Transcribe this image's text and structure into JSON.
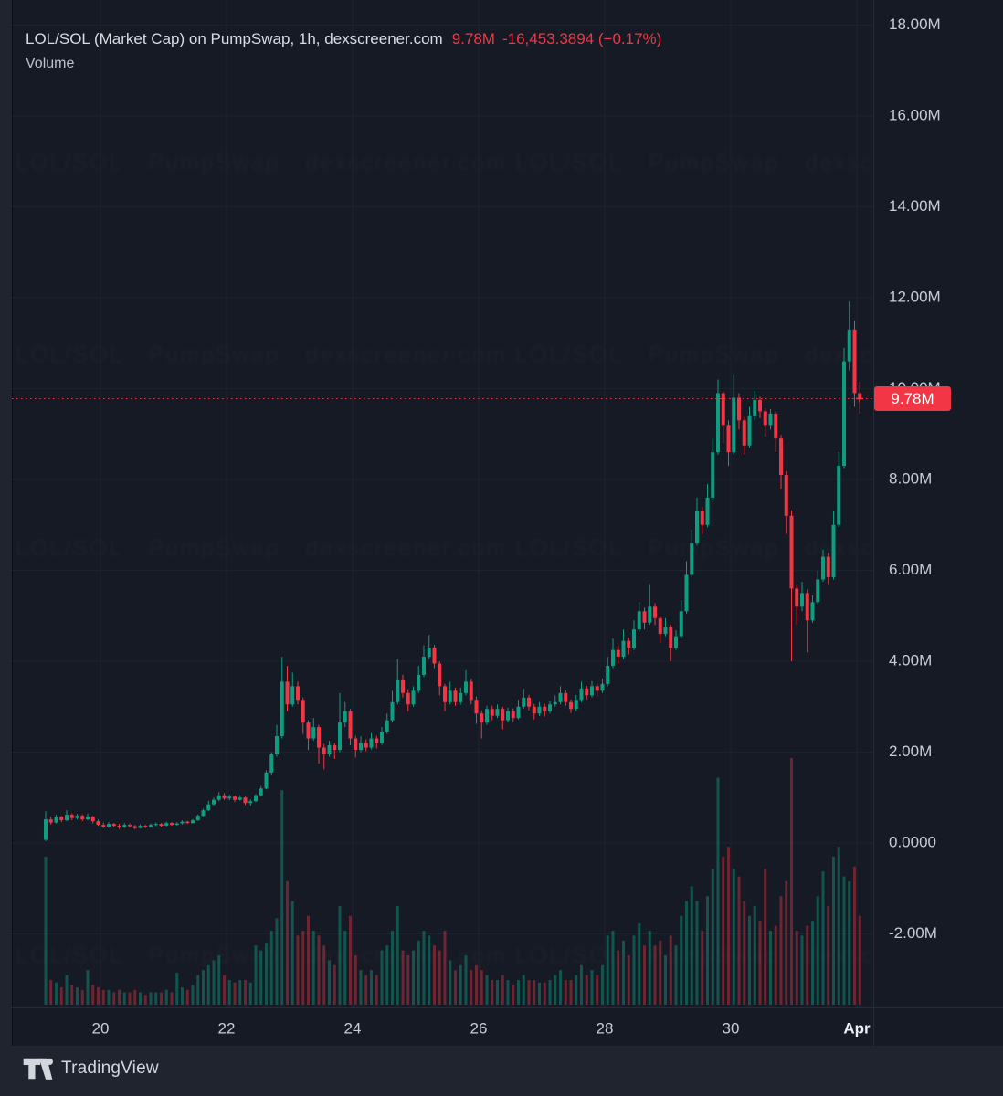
{
  "header": {
    "symbol_line": "LOL/SOL (Market Cap) on PumpSwap, 1h, dexscreener.com",
    "price": "9.78M",
    "change": "-16,453.3894 (−0.17%)",
    "indicator_label": "Volume"
  },
  "price_scale": {
    "current_price_label": "9.78M"
  },
  "branding": {
    "logo_text": "TradingView"
  },
  "watermark": {
    "text": "LOL/SOL · PumpSwap · dexscreener.com"
  },
  "colors": {
    "background": "#151a24",
    "page_background": "#20242f",
    "grid": "#1d2230",
    "border": "#262b38",
    "text": "#c8ccd5",
    "title_text": "#d9dce3",
    "up": "#0f9d82",
    "down": "#f23645",
    "vol_up": "rgba(15,157,130,0.45)",
    "vol_down": "rgba(242,54,69,0.40)",
    "accent": "#f23645",
    "badge_text": "#ffffff",
    "time_emphasis": "#eef1f6"
  },
  "chart_data": {
    "type": "candlestick",
    "title": "LOL/SOL (Market Cap) on PumpSwap, 1h, dexscreener.com",
    "subtitle_indicator": "Volume",
    "interval": "1h",
    "last_price_label": "9.78M",
    "last_price_value_m": 9.78,
    "change_label": "-16,453.3894 (−0.17%)",
    "note": "Values in millions (market cap). OHLC+relative volume estimated from pixels at ~2h resolution, Mar 19 → Apr 1.",
    "x_axis": {
      "tick_labels": [
        "20",
        "22",
        "24",
        "26",
        "28",
        "30",
        "Apr"
      ],
      "emphasis_label": "Apr",
      "grid": true
    },
    "y_axis": {
      "tick_labels": [
        "-2.00M",
        "0.0000",
        "2.00M",
        "4.00M",
        "6.00M",
        "8.00M",
        "10.00M",
        "12.00M",
        "14.00M",
        "16.00M",
        "18.00M"
      ],
      "tick_values_m": [
        -2,
        0,
        2,
        4,
        6,
        8,
        10,
        12,
        14,
        16,
        18
      ],
      "range_m": [
        -2.5,
        18.2
      ],
      "grid": true,
      "position": "right"
    },
    "legend_position": "top-left",
    "candles_format": [
      "open",
      "high",
      "low",
      "close",
      "relative_volume"
    ],
    "candles": [
      [
        0.07,
        0.7,
        0.04,
        0.52,
        0.6
      ],
      [
        0.52,
        0.58,
        0.4,
        0.45,
        0.1
      ],
      [
        0.45,
        0.62,
        0.43,
        0.58,
        0.09
      ],
      [
        0.58,
        0.6,
        0.46,
        0.5,
        0.07
      ],
      [
        0.5,
        0.72,
        0.48,
        0.62,
        0.12
      ],
      [
        0.62,
        0.65,
        0.5,
        0.55,
        0.08
      ],
      [
        0.55,
        0.64,
        0.52,
        0.6,
        0.07
      ],
      [
        0.6,
        0.63,
        0.48,
        0.52,
        0.06
      ],
      [
        0.52,
        0.65,
        0.5,
        0.58,
        0.14
      ],
      [
        0.58,
        0.6,
        0.43,
        0.48,
        0.08
      ],
      [
        0.48,
        0.52,
        0.38,
        0.4,
        0.07
      ],
      [
        0.4,
        0.45,
        0.33,
        0.36,
        0.06
      ],
      [
        0.36,
        0.46,
        0.34,
        0.42,
        0.06
      ],
      [
        0.42,
        0.44,
        0.35,
        0.38,
        0.05
      ],
      [
        0.38,
        0.42,
        0.31,
        0.35,
        0.06
      ],
      [
        0.35,
        0.44,
        0.33,
        0.4,
        0.05
      ],
      [
        0.4,
        0.43,
        0.34,
        0.37,
        0.05
      ],
      [
        0.37,
        0.4,
        0.3,
        0.33,
        0.06
      ],
      [
        0.33,
        0.41,
        0.32,
        0.38,
        0.05
      ],
      [
        0.38,
        0.4,
        0.33,
        0.35,
        0.04
      ],
      [
        0.35,
        0.43,
        0.34,
        0.4,
        0.05
      ],
      [
        0.4,
        0.45,
        0.37,
        0.42,
        0.05
      ],
      [
        0.42,
        0.44,
        0.36,
        0.38,
        0.05
      ],
      [
        0.38,
        0.47,
        0.37,
        0.44,
        0.06
      ],
      [
        0.44,
        0.46,
        0.38,
        0.4,
        0.05
      ],
      [
        0.4,
        0.46,
        0.38,
        0.43,
        0.13
      ],
      [
        0.43,
        0.5,
        0.41,
        0.47,
        0.07
      ],
      [
        0.47,
        0.49,
        0.42,
        0.44,
        0.06
      ],
      [
        0.44,
        0.53,
        0.43,
        0.5,
        0.08
      ],
      [
        0.5,
        0.63,
        0.49,
        0.6,
        0.12
      ],
      [
        0.6,
        0.76,
        0.58,
        0.72,
        0.14
      ],
      [
        0.72,
        0.93,
        0.7,
        0.85,
        0.16
      ],
      [
        0.85,
        1.0,
        0.83,
        0.95,
        0.18
      ],
      [
        0.95,
        1.12,
        0.92,
        1.05,
        0.2
      ],
      [
        1.05,
        1.1,
        0.95,
        0.98,
        0.12
      ],
      [
        0.98,
        1.06,
        0.94,
        1.02,
        0.1
      ],
      [
        1.02,
        1.04,
        0.9,
        0.95,
        0.09
      ],
      [
        0.95,
        1.05,
        0.93,
        1.0,
        0.1
      ],
      [
        1.0,
        1.02,
        0.84,
        0.88,
        0.1
      ],
      [
        0.88,
        0.96,
        0.82,
        0.92,
        0.09
      ],
      [
        0.92,
        1.08,
        0.9,
        1.05,
        0.24
      ],
      [
        1.05,
        1.25,
        1.02,
        1.2,
        0.22
      ],
      [
        1.2,
        1.6,
        1.18,
        1.55,
        0.25
      ],
      [
        1.55,
        2.0,
        1.5,
        1.95,
        0.3
      ],
      [
        1.95,
        2.6,
        1.9,
        2.35,
        0.35
      ],
      [
        2.35,
        4.1,
        2.3,
        3.55,
        0.87
      ],
      [
        3.55,
        3.9,
        2.9,
        3.05,
        0.5
      ],
      [
        3.05,
        3.75,
        3.0,
        3.45,
        0.42
      ],
      [
        3.45,
        3.55,
        3.05,
        3.15,
        0.28
      ],
      [
        3.15,
        3.2,
        2.4,
        2.65,
        0.3
      ],
      [
        2.65,
        2.7,
        2.05,
        2.3,
        0.36
      ],
      [
        2.3,
        2.75,
        2.25,
        2.55,
        0.3
      ],
      [
        2.55,
        2.6,
        1.75,
        2.1,
        0.28
      ],
      [
        2.1,
        2.18,
        1.62,
        1.95,
        0.24
      ],
      [
        1.95,
        2.25,
        1.9,
        2.15,
        0.18
      ],
      [
        2.15,
        2.2,
        1.85,
        2.05,
        0.16
      ],
      [
        2.05,
        3.3,
        2.0,
        2.65,
        0.4
      ],
      [
        2.65,
        3.1,
        2.55,
        2.9,
        0.3
      ],
      [
        2.9,
        2.95,
        2.15,
        2.3,
        0.36
      ],
      [
        2.3,
        2.36,
        1.88,
        2.05,
        0.2
      ],
      [
        2.05,
        2.35,
        2.0,
        2.2,
        0.14
      ],
      [
        2.2,
        2.28,
        2.02,
        2.1,
        0.12
      ],
      [
        2.1,
        2.42,
        2.06,
        2.3,
        0.14
      ],
      [
        2.3,
        2.36,
        2.08,
        2.2,
        0.12
      ],
      [
        2.2,
        2.55,
        2.16,
        2.45,
        0.22
      ],
      [
        2.45,
        2.85,
        2.4,
        2.7,
        0.24
      ],
      [
        2.7,
        3.35,
        2.65,
        3.1,
        0.3
      ],
      [
        3.1,
        4.05,
        3.05,
        3.6,
        0.4
      ],
      [
        3.6,
        3.7,
        3.2,
        3.3,
        0.22
      ],
      [
        3.3,
        3.38,
        2.9,
        3.05,
        0.2
      ],
      [
        3.05,
        3.45,
        3.0,
        3.35,
        0.22
      ],
      [
        3.35,
        3.9,
        3.3,
        3.7,
        0.26
      ],
      [
        3.7,
        4.35,
        3.65,
        4.1,
        0.3
      ],
      [
        4.1,
        4.58,
        4.05,
        4.3,
        0.28
      ],
      [
        4.3,
        4.36,
        3.85,
        3.95,
        0.24
      ],
      [
        3.95,
        4.0,
        3.25,
        3.45,
        0.22
      ],
      [
        3.45,
        3.5,
        2.9,
        3.1,
        0.3
      ],
      [
        3.1,
        3.55,
        3.05,
        3.35,
        0.18
      ],
      [
        3.35,
        3.42,
        3.02,
        3.1,
        0.14
      ],
      [
        3.1,
        3.42,
        3.05,
        3.3,
        0.16
      ],
      [
        3.3,
        3.8,
        3.25,
        3.55,
        0.2
      ],
      [
        3.55,
        3.62,
        3.05,
        3.15,
        0.14
      ],
      [
        3.15,
        3.22,
        2.62,
        2.85,
        0.16
      ],
      [
        2.85,
        2.92,
        2.3,
        2.65,
        0.14
      ],
      [
        2.65,
        3.02,
        2.6,
        2.95,
        0.12
      ],
      [
        2.95,
        3.02,
        2.7,
        2.8,
        0.1
      ],
      [
        2.8,
        3.05,
        2.75,
        2.95,
        0.1
      ],
      [
        2.95,
        3.0,
        2.5,
        2.7,
        0.12
      ],
      [
        2.7,
        2.98,
        2.65,
        2.9,
        0.1
      ],
      [
        2.9,
        2.96,
        2.66,
        2.75,
        0.08
      ],
      [
        2.75,
        3.15,
        2.72,
        3.0,
        0.1
      ],
      [
        3.0,
        3.4,
        2.95,
        3.2,
        0.12
      ],
      [
        3.2,
        3.26,
        2.92,
        3.0,
        0.1
      ],
      [
        3.0,
        3.06,
        2.72,
        2.85,
        0.1
      ],
      [
        2.85,
        3.1,
        2.8,
        3.0,
        0.09
      ],
      [
        3.0,
        3.06,
        2.78,
        2.9,
        0.09
      ],
      [
        2.9,
        3.12,
        2.85,
        3.05,
        0.1
      ],
      [
        3.05,
        3.25,
        3.0,
        3.1,
        0.12
      ],
      [
        3.1,
        3.45,
        3.05,
        3.3,
        0.14
      ],
      [
        3.3,
        3.36,
        3.02,
        3.1,
        0.1
      ],
      [
        3.1,
        3.16,
        2.86,
        2.95,
        0.1
      ],
      [
        2.95,
        3.26,
        2.9,
        3.15,
        0.12
      ],
      [
        3.15,
        3.55,
        3.1,
        3.4,
        0.16
      ],
      [
        3.4,
        3.46,
        3.16,
        3.25,
        0.12
      ],
      [
        3.25,
        3.56,
        3.2,
        3.45,
        0.14
      ],
      [
        3.45,
        3.52,
        3.24,
        3.35,
        0.12
      ],
      [
        3.35,
        3.62,
        3.3,
        3.5,
        0.16
      ],
      [
        3.5,
        4.1,
        3.45,
        3.9,
        0.28
      ],
      [
        3.9,
        4.5,
        3.85,
        4.25,
        0.3
      ],
      [
        4.25,
        4.35,
        3.95,
        4.1,
        0.22
      ],
      [
        4.1,
        4.7,
        4.05,
        4.45,
        0.26
      ],
      [
        4.45,
        4.52,
        4.15,
        4.3,
        0.2
      ],
      [
        4.3,
        4.9,
        4.25,
        4.7,
        0.28
      ],
      [
        4.7,
        5.3,
        4.65,
        5.1,
        0.33
      ],
      [
        5.1,
        5.18,
        4.7,
        4.85,
        0.24
      ],
      [
        4.85,
        5.7,
        4.8,
        5.2,
        0.3
      ],
      [
        5.2,
        5.28,
        4.8,
        4.95,
        0.24
      ],
      [
        4.95,
        5.0,
        4.4,
        4.6,
        0.26
      ],
      [
        4.6,
        4.95,
        4.55,
        4.75,
        0.2
      ],
      [
        4.75,
        4.8,
        4.0,
        4.3,
        0.28
      ],
      [
        4.3,
        4.68,
        4.25,
        4.55,
        0.24
      ],
      [
        4.55,
        5.35,
        4.5,
        5.1,
        0.36
      ],
      [
        5.1,
        6.2,
        5.05,
        5.9,
        0.42
      ],
      [
        5.9,
        6.9,
        5.85,
        6.6,
        0.48
      ],
      [
        6.6,
        7.6,
        6.55,
        7.3,
        0.42
      ],
      [
        7.3,
        7.4,
        6.8,
        7.0,
        0.3
      ],
      [
        7.0,
        7.9,
        6.95,
        7.6,
        0.44
      ],
      [
        7.6,
        8.9,
        7.55,
        8.6,
        0.55
      ],
      [
        8.6,
        10.2,
        8.55,
        9.9,
        0.92
      ],
      [
        9.9,
        9.95,
        8.8,
        9.2,
        0.6
      ],
      [
        9.2,
        9.3,
        8.3,
        8.6,
        0.64
      ],
      [
        8.6,
        10.3,
        8.55,
        9.8,
        0.55
      ],
      [
        9.8,
        9.9,
        9.1,
        9.3,
        0.52
      ],
      [
        9.3,
        9.38,
        8.55,
        8.75,
        0.42
      ],
      [
        8.75,
        9.6,
        8.7,
        9.4,
        0.36
      ],
      [
        9.4,
        9.95,
        9.3,
        9.75,
        0.4
      ],
      [
        9.75,
        9.82,
        9.35,
        9.5,
        0.34
      ],
      [
        9.5,
        9.56,
        8.95,
        9.2,
        0.55
      ],
      [
        9.2,
        9.55,
        9.1,
        9.45,
        0.3
      ],
      [
        9.45,
        9.5,
        8.6,
        8.9,
        0.32
      ],
      [
        8.9,
        8.98,
        7.8,
        8.1,
        0.44
      ],
      [
        8.1,
        8.18,
        6.8,
        7.2,
        0.5
      ],
      [
        7.2,
        7.32,
        4.0,
        5.6,
        1.0
      ],
      [
        5.6,
        5.7,
        4.8,
        5.2,
        0.3
      ],
      [
        5.2,
        5.75,
        5.1,
        5.5,
        0.28
      ],
      [
        5.5,
        5.58,
        4.2,
        4.9,
        0.32
      ],
      [
        4.9,
        5.45,
        4.85,
        5.3,
        0.34
      ],
      [
        5.3,
        6.0,
        5.25,
        5.8,
        0.44
      ],
      [
        5.8,
        6.45,
        5.75,
        6.3,
        0.54
      ],
      [
        6.3,
        6.38,
        5.7,
        5.85,
        0.4
      ],
      [
        5.85,
        7.3,
        5.8,
        7.0,
        0.6
      ],
      [
        7.0,
        8.6,
        6.95,
        8.3,
        0.64
      ],
      [
        8.3,
        10.9,
        8.25,
        10.6,
        0.52
      ],
      [
        10.6,
        11.92,
        10.4,
        11.3,
        0.5
      ],
      [
        11.3,
        11.5,
        9.6,
        9.9,
        0.56
      ],
      [
        9.9,
        10.15,
        9.45,
        9.78,
        0.36
      ]
    ]
  }
}
